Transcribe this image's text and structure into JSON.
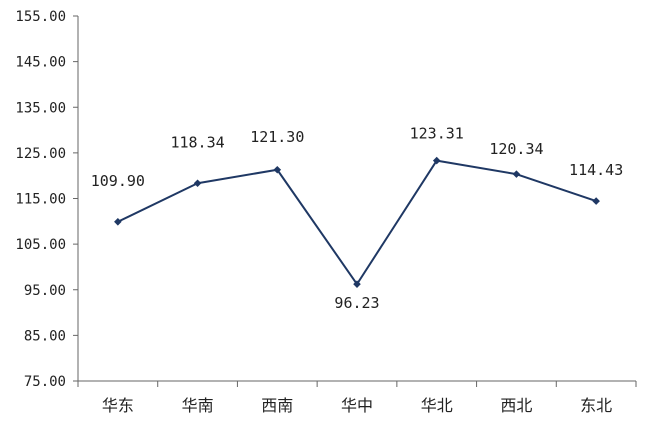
{
  "chart_data": {
    "type": "line",
    "categories": [
      "华东",
      "华南",
      "西南",
      "华中",
      "华北",
      "西北",
      "东北"
    ],
    "series": [
      {
        "values": [
          109.9,
          118.34,
          121.3,
          96.23,
          123.31,
          120.34,
          114.43
        ]
      }
    ],
    "data_labels": [
      "109.90",
      "118.34",
      "121.30",
      "96.23",
      "123.31",
      "120.34",
      "114.43"
    ],
    "yticks": [
      "75.00",
      "85.00",
      "95.00",
      "105.00",
      "115.00",
      "125.00",
      "135.00",
      "145.00",
      "155.00"
    ],
    "ylim": [
      75,
      155
    ],
    "title": "",
    "xlabel": "",
    "ylabel": "",
    "grid": false,
    "line_color": "#1f3864",
    "marker": "diamond"
  }
}
